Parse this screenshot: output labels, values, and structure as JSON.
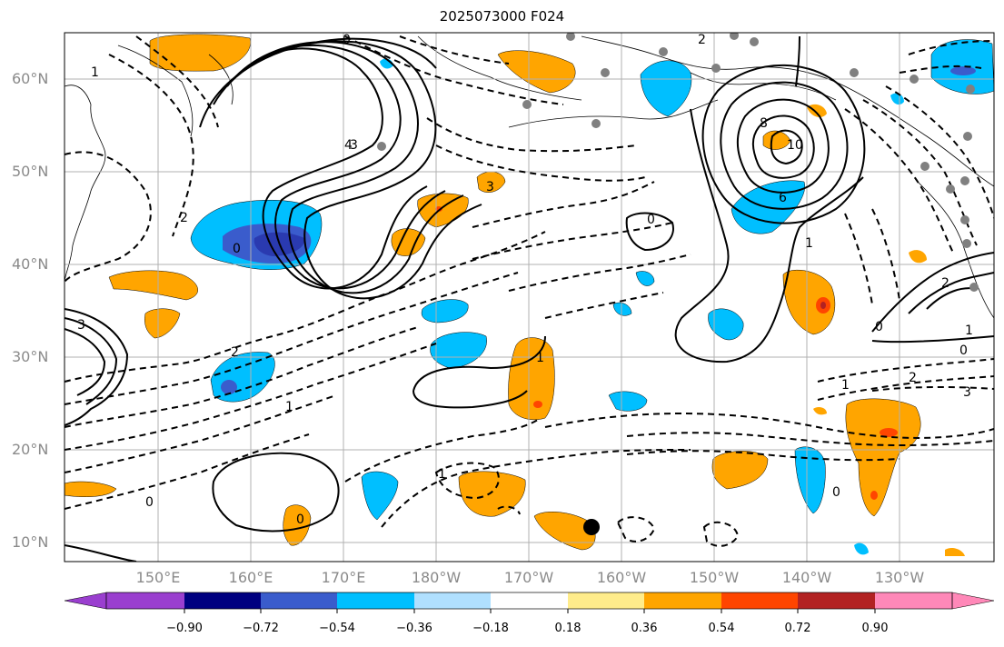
{
  "title": "2025073000 F024",
  "lat_labels": [
    "60°N",
    "50°N",
    "40°N",
    "30°N",
    "20°N",
    "10°N"
  ],
  "lon_labels": [
    "150°E",
    "160°E",
    "170°E",
    "180°W",
    "170°W",
    "160°W",
    "150°W",
    "140°W",
    "130°W"
  ],
  "contour_labels": [
    "0",
    "2",
    "1",
    "3",
    "4",
    "8",
    "10",
    "6",
    "0",
    "1",
    "2",
    "3",
    "0",
    "1",
    "2",
    "1",
    "0",
    "2",
    "1",
    "3",
    "0",
    "1",
    "0",
    "0",
    "0",
    "1",
    "2",
    "3"
  ],
  "colorbar": {
    "ticks": [
      "−0.90",
      "−0.72",
      "−0.54",
      "−0.36",
      "−0.18",
      "0.18",
      "0.36",
      "0.54",
      "0.72",
      "0.90"
    ],
    "colors": [
      "#9a3fcf",
      "#000080",
      "#3a5ccc",
      "#00bfff",
      "#b0e0ff",
      "#ffffff",
      "#ffec8b",
      "#ffa500",
      "#ff4500",
      "#b22222",
      "#ff88b8"
    ]
  }
}
